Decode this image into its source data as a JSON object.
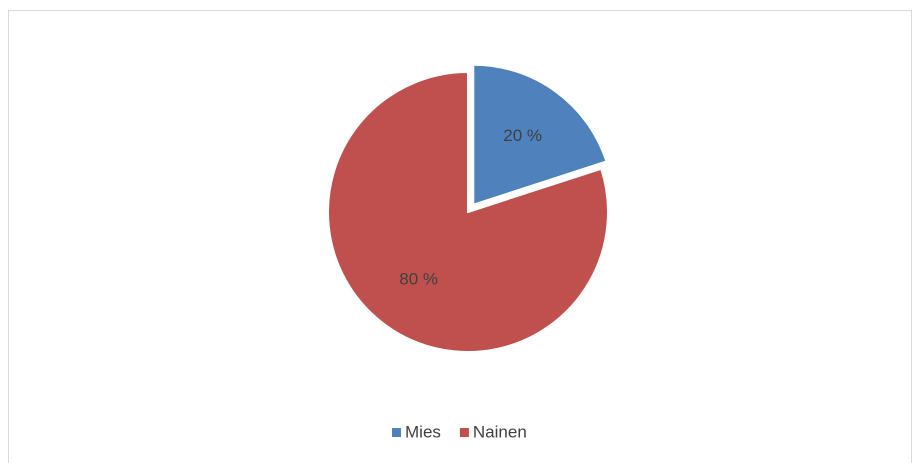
{
  "chart_data": {
    "type": "pie",
    "categories": [
      "Mies",
      "Nainen"
    ],
    "values": [
      20,
      80
    ],
    "value_labels": [
      "20 %",
      "80 %"
    ],
    "colors": [
      "#4f81bd",
      "#c0504d"
    ],
    "legend": "bottom"
  }
}
